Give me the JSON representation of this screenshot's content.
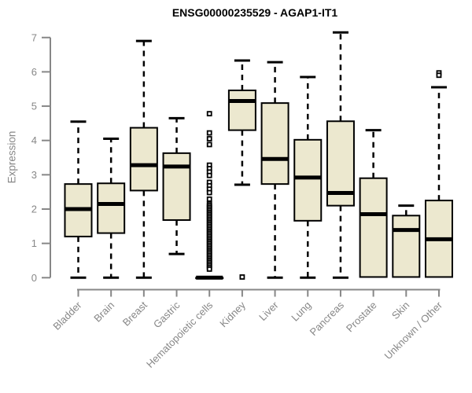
{
  "chart_data": {
    "type": "boxplot",
    "title": "ENSG00000235529 - AGAP1-IT1",
    "ylabel": "Expression",
    "xlabel": "",
    "ylim": [
      0,
      7
    ],
    "yticks": [
      0,
      1,
      2,
      3,
      4,
      5,
      6,
      7
    ],
    "grid": false,
    "legend": "none",
    "categories": [
      "Bladder",
      "Brain",
      "Breast",
      "Gastric",
      "Hematopoietic cells",
      "Kidney",
      "Liver",
      "Lung",
      "Pancreas",
      "Prostate",
      "Skin",
      "Unknown / Other"
    ],
    "series": [
      {
        "category": "Bladder",
        "whisker_low": 0,
        "q1": 1.2,
        "median": 2.0,
        "q3": 2.73,
        "whisker_high": 4.55,
        "outliers": []
      },
      {
        "category": "Brain",
        "whisker_low": 0,
        "q1": 1.3,
        "median": 2.15,
        "q3": 2.75,
        "whisker_high": 4.05,
        "outliers": []
      },
      {
        "category": "Breast",
        "whisker_low": 0,
        "q1": 2.54,
        "median": 3.28,
        "q3": 4.37,
        "whisker_high": 6.9,
        "outliers": []
      },
      {
        "category": "Gastric",
        "whisker_low": 0.69,
        "q1": 1.68,
        "median": 3.24,
        "q3": 3.63,
        "whisker_high": 4.65,
        "outliers": []
      },
      {
        "category": "Hematopoietic cells",
        "whisker_low": 0,
        "q1": 0,
        "median": 0,
        "q3": 0,
        "whisker_high": 0,
        "outliers": [
          4.78,
          4.22,
          4.05,
          3.88,
          3.28,
          3.18,
          3.08,
          2.98,
          2.78,
          2.68,
          2.58,
          2.48,
          2.29,
          2.15,
          2.1,
          2.05,
          2.0,
          1.95,
          1.9,
          1.85,
          1.8,
          1.75,
          1.7,
          1.65,
          1.6,
          1.55,
          1.5,
          1.45,
          1.4,
          1.35,
          1.3,
          1.25,
          1.2,
          1.15,
          1.1,
          1.05,
          1.0,
          0.95,
          0.9,
          0.85,
          0.8,
          0.75,
          0.7,
          0.65,
          0.6,
          0.55,
          0.5,
          0.45,
          0.4,
          0.35,
          0.3,
          0.25
        ]
      },
      {
        "category": "Kidney",
        "whisker_low": 2.71,
        "q1": 4.3,
        "median": 5.15,
        "q3": 5.46,
        "whisker_high": 6.33,
        "outliers": [
          0.02
        ]
      },
      {
        "category": "Liver",
        "whisker_low": 0,
        "q1": 2.73,
        "median": 3.46,
        "q3": 5.09,
        "whisker_high": 6.28,
        "outliers": []
      },
      {
        "category": "Lung",
        "whisker_low": 0,
        "q1": 1.66,
        "median": 2.92,
        "q3": 4.02,
        "whisker_high": 5.85,
        "outliers": []
      },
      {
        "category": "Pancreas",
        "whisker_low": 0,
        "q1": 2.1,
        "median": 2.47,
        "q3": 4.56,
        "whisker_high": 7.15,
        "outliers": []
      },
      {
        "category": "Prostate",
        "whisker_low": 0.02,
        "q1": 0.02,
        "median": 1.85,
        "q3": 2.9,
        "whisker_high": 4.3,
        "outliers": []
      },
      {
        "category": "Skin",
        "whisker_low": 0.02,
        "q1": 0.02,
        "median": 1.39,
        "q3": 1.81,
        "whisker_high": 2.1,
        "outliers": []
      },
      {
        "category": "Unknown / Other",
        "whisker_low": 0.02,
        "q1": 0.02,
        "median": 1.12,
        "q3": 2.25,
        "whisker_high": 5.55,
        "outliers": [
          5.97,
          5.9
        ]
      }
    ],
    "colors": {
      "box_fill": "#ece8cf",
      "box_border": "#000000",
      "median": "#000000",
      "whisker": "#000000",
      "axis": "#878787",
      "title": "#000000"
    }
  }
}
